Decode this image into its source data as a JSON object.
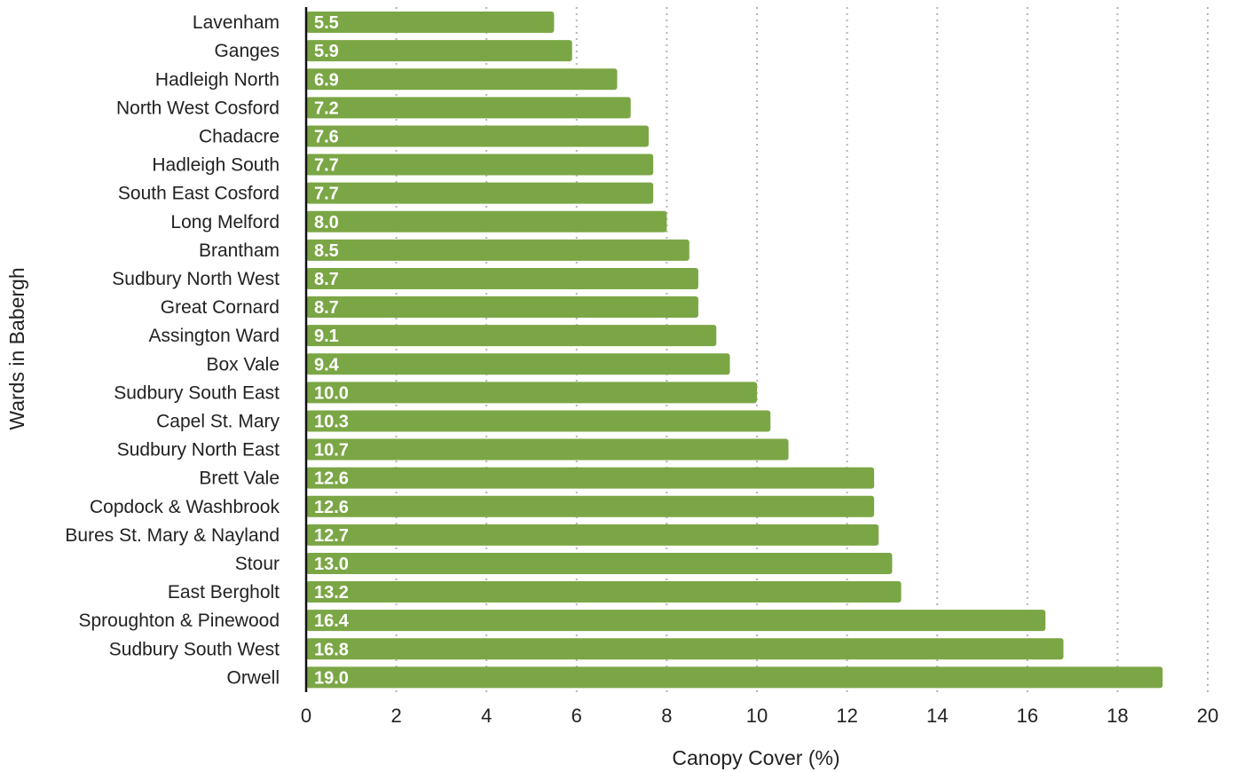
{
  "chart_data": {
    "type": "bar",
    "orientation": "horizontal",
    "xlabel": "Canopy Cover (%)",
    "ylabel": "Wards in Babergh",
    "xlim": [
      0,
      20
    ],
    "xticks": [
      0,
      2,
      4,
      6,
      8,
      10,
      12,
      14,
      16,
      18,
      20
    ],
    "grid": "vertical dotted",
    "bar_color": "#7ba645",
    "categories": [
      "Lavenham",
      "Ganges",
      "Hadleigh North",
      "North West Cosford",
      "Chadacre",
      "Hadleigh South",
      "South East Cosford",
      "Long Melford",
      "Brantham",
      "Sudbury North West",
      "Great Cornard",
      "Assington Ward",
      "Box Vale",
      "Sudbury South East",
      "Capel St. Mary",
      "Sudbury North East",
      "Brett Vale",
      "Copdock & Washbrook",
      "Bures St. Mary & Nayland",
      "Stour",
      "East Bergholt",
      "Sproughton & Pinewood",
      "Sudbury South West",
      "Orwell"
    ],
    "values": [
      5.5,
      5.9,
      6.9,
      7.2,
      7.6,
      7.7,
      7.7,
      8.0,
      8.5,
      8.7,
      8.7,
      9.1,
      9.4,
      10.0,
      10.3,
      10.7,
      12.6,
      12.6,
      12.7,
      13.0,
      13.2,
      16.4,
      16.8,
      19.0
    ],
    "value_labels": [
      "5.5",
      "5.9",
      "6.9",
      "7.2",
      "7.6",
      "7.7",
      "7.7",
      "8.0",
      "8.5",
      "8.7",
      "8.7",
      "9.1",
      "9.4",
      "10.0",
      "10.3",
      "10.7",
      "12.6",
      "12.6",
      "12.7",
      "13.0",
      "13.2",
      "16.4",
      "16.8",
      "19.0"
    ]
  }
}
